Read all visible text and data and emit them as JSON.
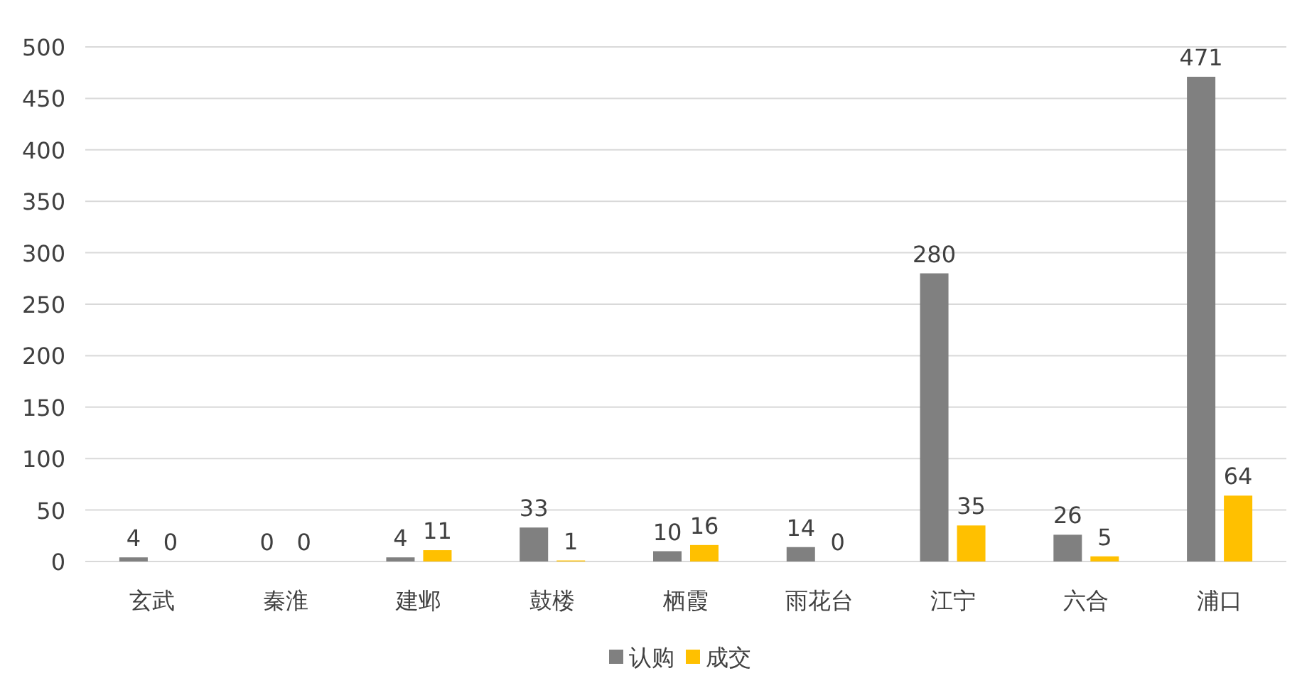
{
  "chart_data": {
    "type": "bar",
    "categories": [
      "玄武",
      "秦淮",
      "建邺",
      "鼓楼",
      "栖霞",
      "雨花台",
      "江宁",
      "六合",
      "浦口"
    ],
    "series": [
      {
        "name": "认购",
        "color": "#808080",
        "values": [
          4,
          0,
          4,
          33,
          10,
          14,
          280,
          26,
          471
        ]
      },
      {
        "name": "成交",
        "color": "#ffc000",
        "values": [
          0,
          0,
          11,
          1,
          16,
          0,
          35,
          5,
          64
        ]
      }
    ],
    "ylim": [
      0,
      500
    ],
    "yticks": [
      0,
      50,
      100,
      150,
      200,
      250,
      300,
      350,
      400,
      450,
      500
    ],
    "grid": "y",
    "legend": "bottom",
    "data_labels": true
  }
}
